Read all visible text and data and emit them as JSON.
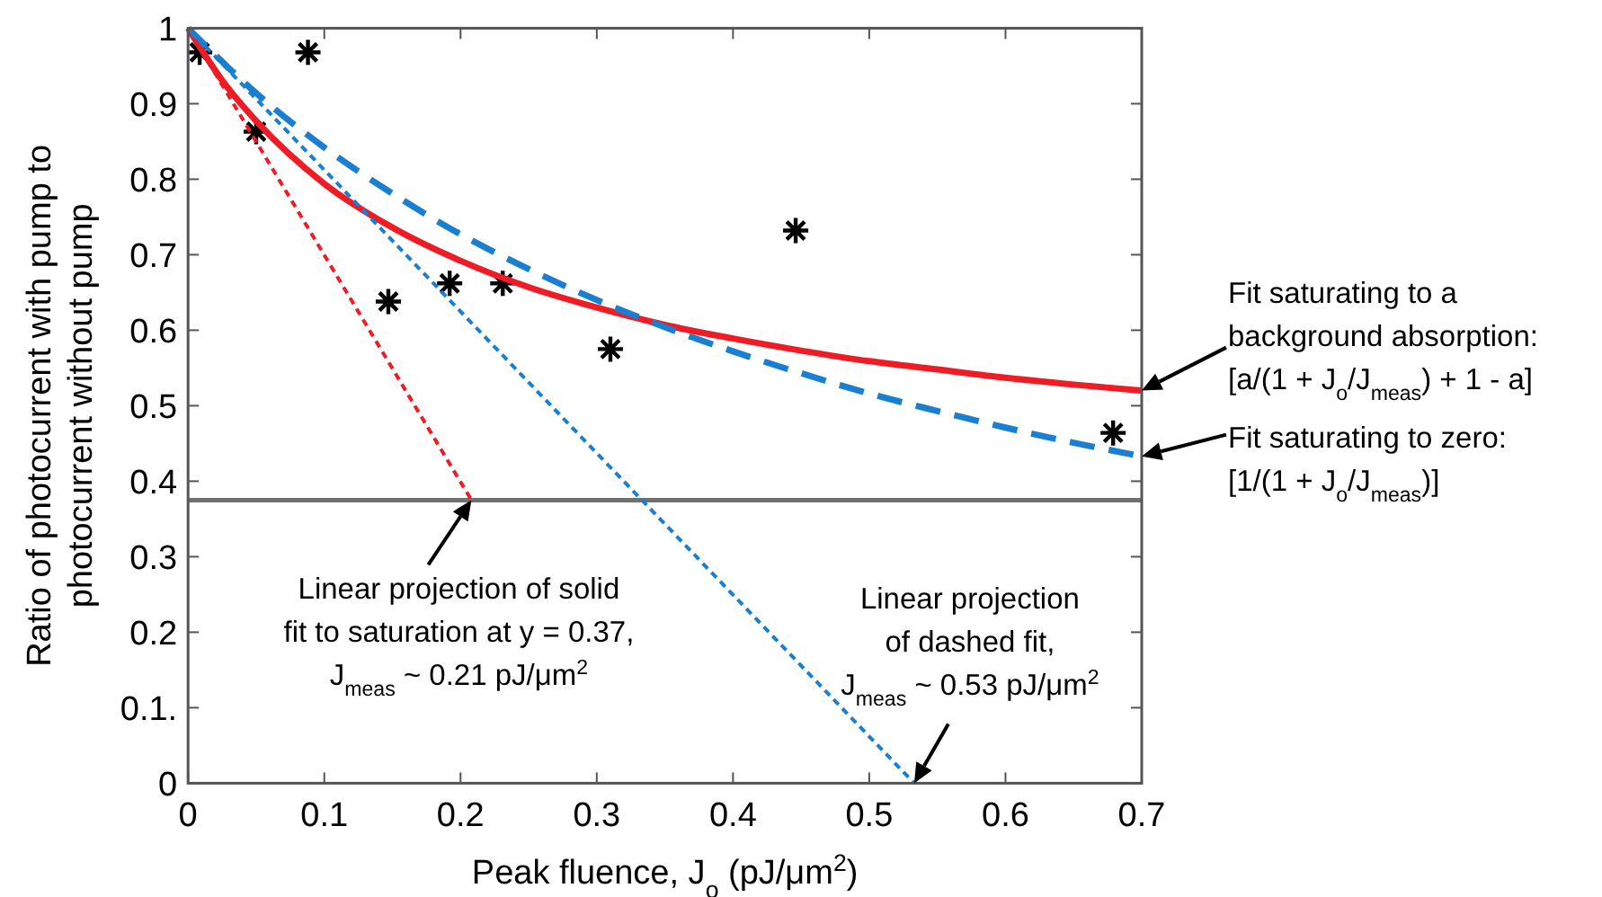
{
  "chart_data": {
    "type": "line",
    "xlabel": "Peak fluence, J$_{o}$ (pJ/μm$^{2}$)",
    "ylabel": "Ratio of photocurrent with pump to\nphotocurrent without pump",
    "xlim": [
      0,
      0.7
    ],
    "xticks": [
      0,
      0.1,
      0.2,
      0.3,
      0.4,
      0.5,
      0.6,
      0.7
    ],
    "ylim": [
      0,
      1
    ],
    "yticks": [
      0,
      {
        "value": 0.1,
        "label": "0.1."
      },
      0.2,
      0.3,
      0.4,
      0.5,
      0.6,
      0.7,
      0.8,
      0.9,
      1
    ],
    "grid": false,
    "series": [
      {
        "type": "scatter",
        "marker": "cross",
        "color": "#000000",
        "x": [
          0.0085,
          0.05,
          0.088,
          0.147,
          0.192,
          0.231,
          0.31,
          0.446,
          0.679
        ],
        "values": [
          0.968,
          0.863,
          0.968,
          0.638,
          0.662,
          0.662,
          0.575,
          0.732,
          0.464
        ]
      },
      {
        "line_style": "solid",
        "color": "#ee1c25",
        "x": [
          0,
          0.025,
          0.05,
          0.1,
          0.15,
          0.2,
          0.25,
          0.3,
          0.35,
          0.4,
          0.45,
          0.5,
          0.55,
          0.6,
          0.65,
          0.7
        ],
        "values": [
          1,
          0.931,
          0.877,
          0.794,
          0.736,
          0.692,
          0.657,
          0.63,
          0.607,
          0.589,
          0.573,
          0.559,
          0.548,
          0.537,
          0.528,
          0.52
        ]
      },
      {
        "line_style": "dashed",
        "color": "#1a7fd0",
        "x": [
          0,
          0.05,
          0.1,
          0.15,
          0.2,
          0.25,
          0.3,
          0.35,
          0.4,
          0.45,
          0.5,
          0.55,
          0.6,
          0.65,
          0.7
        ],
        "values": [
          1,
          0.914,
          0.842,
          0.781,
          0.727,
          0.681,
          0.64,
          0.604,
          0.572,
          0.543,
          0.516,
          0.493,
          0.471,
          0.451,
          0.433
        ]
      },
      {
        "line_style": "dotted",
        "color": "#ee1c25",
        "x": [
          0,
          0.208
        ],
        "values": [
          1,
          0.375
        ]
      },
      {
        "line_style": "dotted",
        "color": "#1a7fd0",
        "x": [
          0,
          0.533
        ],
        "values": [
          1,
          0
        ]
      }
    ],
    "ref_lines": [
      {
        "axis": "y",
        "value": 0.375,
        "color": "#707070"
      }
    ],
    "annotations": [
      {
        "text": "Fit saturating to a\nbackground  absorption:\n[a/(1 + J$_{o}$/J$_{meas}$) + 1 - a]",
        "x": 0.7,
        "y": 0.52
      },
      {
        "text": "Fit saturating to zero:\n[1/(1 + J$_{o}$/J$_{meas}$)]",
        "x": 0.7,
        "y": 0.433
      },
      {
        "text": "Linear projection of solid\nfit to saturation at y = 0.37,\nJ$_{meas}$ ~ 0.21 pJ/μm$^{2}$",
        "x": 0.208,
        "y": 0.375
      },
      {
        "text": "Linear projection\nof dashed fit,\nJ$_{meas}$ ~ 0.53 pJ/μm$^{2}$",
        "x": 0.533,
        "y": 0
      }
    ]
  }
}
